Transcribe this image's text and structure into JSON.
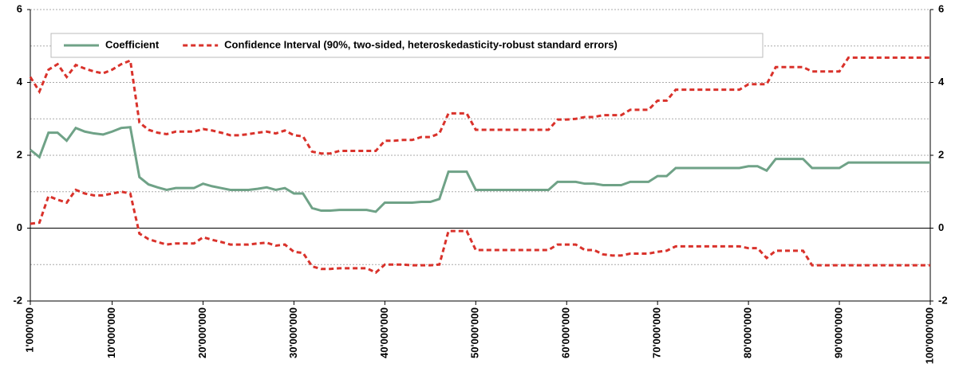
{
  "chart_data": {
    "type": "line",
    "legend": "top-left",
    "grid": true,
    "xlim": [
      1000000,
      100000000
    ],
    "xticks": [
      {
        "value": 1000000,
        "label": "1'000'000"
      },
      {
        "value": 10000000,
        "label": "10'000'000"
      },
      {
        "value": 20000000,
        "label": "20'000'000"
      },
      {
        "value": 30000000,
        "label": "30'000'000"
      },
      {
        "value": 40000000,
        "label": "40'000'000"
      },
      {
        "value": 50000000,
        "label": "50'000'000"
      },
      {
        "value": 60000000,
        "label": "60'000'000"
      },
      {
        "value": 70000000,
        "label": "70'000'000"
      },
      {
        "value": 80000000,
        "label": "80'000'000"
      },
      {
        "value": 90000000,
        "label": "90'000'000"
      },
      {
        "value": 100000000,
        "label": "100'000'000"
      }
    ],
    "ylim": [
      -2,
      6
    ],
    "yticks": [
      -2,
      0,
      2,
      4,
      6
    ],
    "minor_yticks": [
      -1,
      1,
      3,
      5
    ],
    "y2lim": [
      -2,
      6
    ],
    "y2ticks": [
      -2,
      0,
      2,
      4,
      6
    ],
    "x": [
      1000000,
      2000000,
      3000000,
      4000000,
      5000000,
      6000000,
      7000000,
      8000000,
      9000000,
      10000000,
      11000000,
      12000000,
      13000000,
      14000000,
      15000000,
      16000000,
      17000000,
      18000000,
      19000000,
      20000000,
      21000000,
      22000000,
      23000000,
      24000000,
      25000000,
      26000000,
      27000000,
      28000000,
      29000000,
      30000000,
      31000000,
      32000000,
      33000000,
      34000000,
      35000000,
      36000000,
      37000000,
      38000000,
      39000000,
      40000000,
      41000000,
      42000000,
      43000000,
      44000000,
      45000000,
      46000000,
      47000000,
      48000000,
      49000000,
      50000000,
      51000000,
      52000000,
      53000000,
      54000000,
      55000000,
      56000000,
      57000000,
      58000000,
      59000000,
      60000000,
      61000000,
      62000000,
      63000000,
      64000000,
      65000000,
      66000000,
      67000000,
      68000000,
      69000000,
      70000000,
      71000000,
      72000000,
      73000000,
      74000000,
      75000000,
      76000000,
      77000000,
      78000000,
      79000000,
      80000000,
      81000000,
      82000000,
      83000000,
      84000000,
      85000000,
      86000000,
      87000000,
      88000000,
      89000000,
      90000000,
      91000000,
      92000000,
      93000000,
      94000000,
      95000000,
      96000000,
      97000000,
      98000000,
      99000000,
      100000000
    ],
    "series": [
      {
        "name": "Coefficient",
        "color": "#6fa287",
        "dash": "none",
        "values": [
          2.15,
          1.95,
          2.62,
          2.62,
          2.4,
          2.75,
          2.65,
          2.6,
          2.57,
          2.65,
          2.75,
          2.77,
          1.4,
          1.2,
          1.12,
          1.05,
          1.1,
          1.1,
          1.1,
          1.22,
          1.15,
          1.1,
          1.05,
          1.05,
          1.05,
          1.08,
          1.12,
          1.05,
          1.1,
          0.95,
          0.95,
          0.55,
          0.48,
          0.48,
          0.5,
          0.5,
          0.5,
          0.5,
          0.45,
          0.7,
          0.7,
          0.7,
          0.7,
          0.72,
          0.72,
          0.8,
          1.55,
          1.55,
          1.55,
          1.05,
          1.05,
          1.05,
          1.05,
          1.05,
          1.05,
          1.05,
          1.05,
          1.05,
          1.27,
          1.27,
          1.27,
          1.22,
          1.22,
          1.18,
          1.18,
          1.18,
          1.27,
          1.27,
          1.27,
          1.43,
          1.43,
          1.65,
          1.65,
          1.65,
          1.65,
          1.65,
          1.65,
          1.65,
          1.65,
          1.7,
          1.7,
          1.58,
          1.9,
          1.9,
          1.9,
          1.9,
          1.65,
          1.65,
          1.65,
          1.65,
          1.8,
          1.8,
          1.8,
          1.8,
          1.8,
          1.8,
          1.8,
          1.8,
          1.8,
          1.8
        ]
      },
      {
        "name": "Confidence Interval (90%, two-sided, heteroskedasticity-robust standard errors)",
        "color": "#d9322b",
        "dash": "6 4",
        "upper": [
          4.15,
          3.75,
          4.35,
          4.5,
          4.15,
          4.48,
          4.38,
          4.3,
          4.25,
          4.35,
          4.5,
          4.6,
          2.9,
          2.7,
          2.62,
          2.58,
          2.65,
          2.65,
          2.65,
          2.72,
          2.68,
          2.62,
          2.55,
          2.55,
          2.58,
          2.62,
          2.65,
          2.6,
          2.68,
          2.55,
          2.52,
          2.1,
          2.05,
          2.05,
          2.12,
          2.12,
          2.12,
          2.12,
          2.12,
          2.4,
          2.4,
          2.42,
          2.42,
          2.5,
          2.5,
          2.6,
          3.15,
          3.15,
          3.15,
          2.7,
          2.7,
          2.7,
          2.7,
          2.7,
          2.7,
          2.7,
          2.7,
          2.7,
          2.98,
          2.98,
          3.0,
          3.05,
          3.05,
          3.1,
          3.1,
          3.1,
          3.25,
          3.25,
          3.25,
          3.5,
          3.5,
          3.8,
          3.8,
          3.8,
          3.8,
          3.8,
          3.8,
          3.8,
          3.8,
          3.95,
          3.95,
          3.95,
          4.42,
          4.42,
          4.42,
          4.42,
          4.3,
          4.3,
          4.3,
          4.3,
          4.68,
          4.68,
          4.68,
          4.68,
          4.68,
          4.68,
          4.68,
          4.68,
          4.68,
          4.68
        ],
        "lower": [
          0.12,
          0.15,
          0.88,
          0.78,
          0.7,
          1.05,
          0.95,
          0.9,
          0.9,
          0.95,
          1.0,
          0.95,
          -0.15,
          -0.3,
          -0.38,
          -0.45,
          -0.42,
          -0.42,
          -0.42,
          -0.25,
          -0.32,
          -0.38,
          -0.45,
          -0.45,
          -0.45,
          -0.42,
          -0.4,
          -0.48,
          -0.45,
          -0.65,
          -0.68,
          -1.05,
          -1.12,
          -1.12,
          -1.1,
          -1.1,
          -1.1,
          -1.1,
          -1.22,
          -1.0,
          -1.0,
          -1.0,
          -1.02,
          -1.02,
          -1.02,
          -1.0,
          -0.08,
          -0.08,
          -0.08,
          -0.6,
          -0.6,
          -0.6,
          -0.6,
          -0.6,
          -0.6,
          -0.6,
          -0.6,
          -0.6,
          -0.45,
          -0.45,
          -0.45,
          -0.6,
          -0.6,
          -0.72,
          -0.75,
          -0.75,
          -0.7,
          -0.7,
          -0.7,
          -0.65,
          -0.62,
          -0.5,
          -0.5,
          -0.5,
          -0.5,
          -0.5,
          -0.5,
          -0.5,
          -0.5,
          -0.55,
          -0.55,
          -0.82,
          -0.62,
          -0.62,
          -0.62,
          -0.62,
          -1.02,
          -1.02,
          -1.02,
          -1.02,
          -1.02,
          -1.02,
          -1.02,
          -1.02,
          -1.02,
          -1.02,
          -1.02,
          -1.02,
          -1.02,
          -1.02
        ]
      }
    ]
  }
}
